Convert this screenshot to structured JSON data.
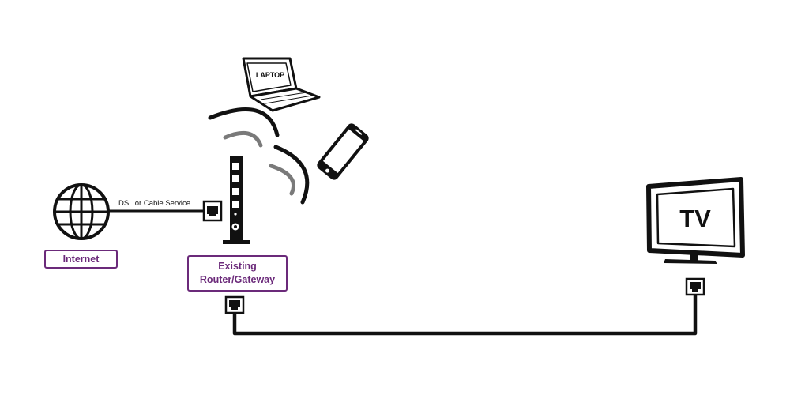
{
  "internet": {
    "label": "Internet"
  },
  "connection": {
    "caption": "DSL or Cable Service"
  },
  "router": {
    "line1": "Existing",
    "line2": "Router/Gateway"
  },
  "laptop": {
    "label": "LAPTOP"
  },
  "tv": {
    "label": "TV"
  },
  "colors": {
    "accent": "#6b2a7a",
    "line": "#111111",
    "wifi_outer": "#111111",
    "wifi_inner": "#7a7a7a"
  }
}
